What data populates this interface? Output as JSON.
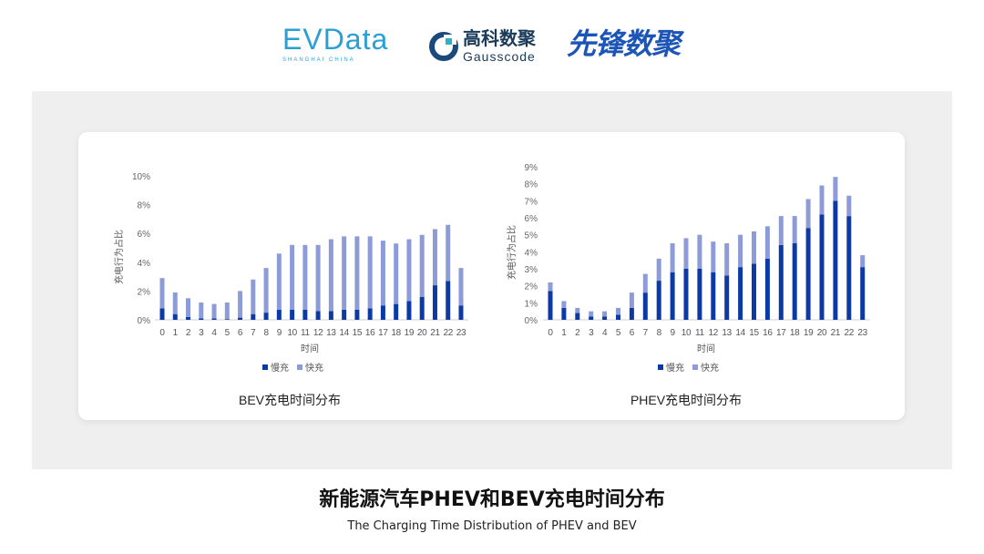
{
  "logos": {
    "evdata": "EVData",
    "evdata_sub": "SHANGHAI CHINA",
    "gauss_cn": "高科数聚",
    "gauss_en": "Gausscode",
    "xianfeng": "先锋数聚"
  },
  "title": "新能源汽车PHEV和BEV充电时间分布",
  "subtitle": "The Charging Time Distribution of PHEV and BEV",
  "colors": {
    "slow": "#0b3aa6",
    "fast": "#8d9bd9"
  },
  "chart_data": [
    {
      "type": "bar",
      "stacked": true,
      "title": "BEV充电时间分布",
      "xlabel": "时间",
      "ylabel": "充电行为占比",
      "ylim": [
        0,
        10
      ],
      "yticks": [
        "0%",
        "2%",
        "4%",
        "6%",
        "8%",
        "10%"
      ],
      "ytick_values": [
        0,
        2,
        4,
        6,
        8,
        10
      ],
      "legend": "bottom",
      "categories": [
        "0",
        "1",
        "2",
        "3",
        "4",
        "5",
        "6",
        "7",
        "8",
        "9",
        "10",
        "11",
        "12",
        "13",
        "14",
        "15",
        "16",
        "17",
        "18",
        "19",
        "20",
        "21",
        "22",
        "23"
      ],
      "series": [
        {
          "name": "慢充",
          "values": [
            0.8,
            0.4,
            0.2,
            0.1,
            0.1,
            0.05,
            0.15,
            0.4,
            0.5,
            0.7,
            0.7,
            0.7,
            0.6,
            0.6,
            0.7,
            0.7,
            0.8,
            1.0,
            1.1,
            1.3,
            1.6,
            2.4,
            2.7,
            1.0
          ]
        },
        {
          "name": "快充",
          "values": [
            2.1,
            1.5,
            1.3,
            1.1,
            1.0,
            1.15,
            1.85,
            2.4,
            3.1,
            3.9,
            4.5,
            4.5,
            4.6,
            5.0,
            5.1,
            5.1,
            5.0,
            4.5,
            4.2,
            4.3,
            4.3,
            3.9,
            3.9,
            2.6
          ]
        }
      ]
    },
    {
      "type": "bar",
      "stacked": true,
      "title": "PHEV充电时间分布",
      "xlabel": "时间",
      "ylabel": "充电行为占比",
      "ylim": [
        0,
        9
      ],
      "yticks": [
        "0%",
        "1%",
        "2%",
        "3%",
        "4%",
        "5%",
        "6%",
        "7%",
        "8%",
        "9%"
      ],
      "ytick_values": [
        0,
        1,
        2,
        3,
        4,
        5,
        6,
        7,
        8,
        9
      ],
      "legend": "bottom",
      "categories": [
        "0",
        "1",
        "2",
        "3",
        "4",
        "5",
        "6",
        "7",
        "8",
        "9",
        "10",
        "11",
        "12",
        "13",
        "14",
        "15",
        "16",
        "17",
        "18",
        "19",
        "20",
        "21",
        "22",
        "23"
      ],
      "series": [
        {
          "name": "慢充",
          "values": [
            1.7,
            0.7,
            0.4,
            0.2,
            0.2,
            0.3,
            0.7,
            1.6,
            2.3,
            2.8,
            3.0,
            3.0,
            2.8,
            2.6,
            3.1,
            3.3,
            3.6,
            4.4,
            4.5,
            5.4,
            6.2,
            7.0,
            6.1,
            3.1
          ]
        },
        {
          "name": "快充",
          "values": [
            0.5,
            0.4,
            0.3,
            0.3,
            0.3,
            0.4,
            0.9,
            1.1,
            1.3,
            1.7,
            1.8,
            2.0,
            1.8,
            1.9,
            1.9,
            1.9,
            1.9,
            1.7,
            1.6,
            1.7,
            1.7,
            1.4,
            1.2,
            0.7
          ]
        }
      ]
    }
  ]
}
